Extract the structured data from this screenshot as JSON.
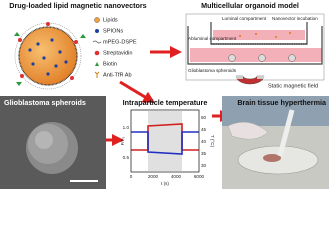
{
  "panels": {
    "nanovector": {
      "title": "Drug-loaded lipid magnetic nanovectors",
      "legend": [
        "Lipids",
        "SPIONs",
        "mPEG-DSPE",
        "Streptavidin",
        "Biotin",
        "Anti-TfR Ab"
      ]
    },
    "organoid": {
      "title": "Multicellular organoid model",
      "labels": [
        "Luminal compartment",
        "Nanovector incubation",
        "Abluminal compartment",
        "Glioblastoma spheroids",
        "Static magnetic field"
      ]
    },
    "spheroids": {
      "title": "Glioblastoma spheroids"
    },
    "temperature": {
      "title": "Intraparticle temperature",
      "y_label": "F/F₀",
      "y2_label": "T (°C)",
      "x_label": "t (s)",
      "xticks": [
        "0",
        "2000",
        "4000",
        "6000"
      ],
      "yticks": [
        "0.5",
        "1.0"
      ],
      "y2ticks": [
        "30",
        "35",
        "40",
        "45",
        "50"
      ]
    },
    "hyperthermia": {
      "title": "Brain tissue hyperthermia"
    }
  }
}
